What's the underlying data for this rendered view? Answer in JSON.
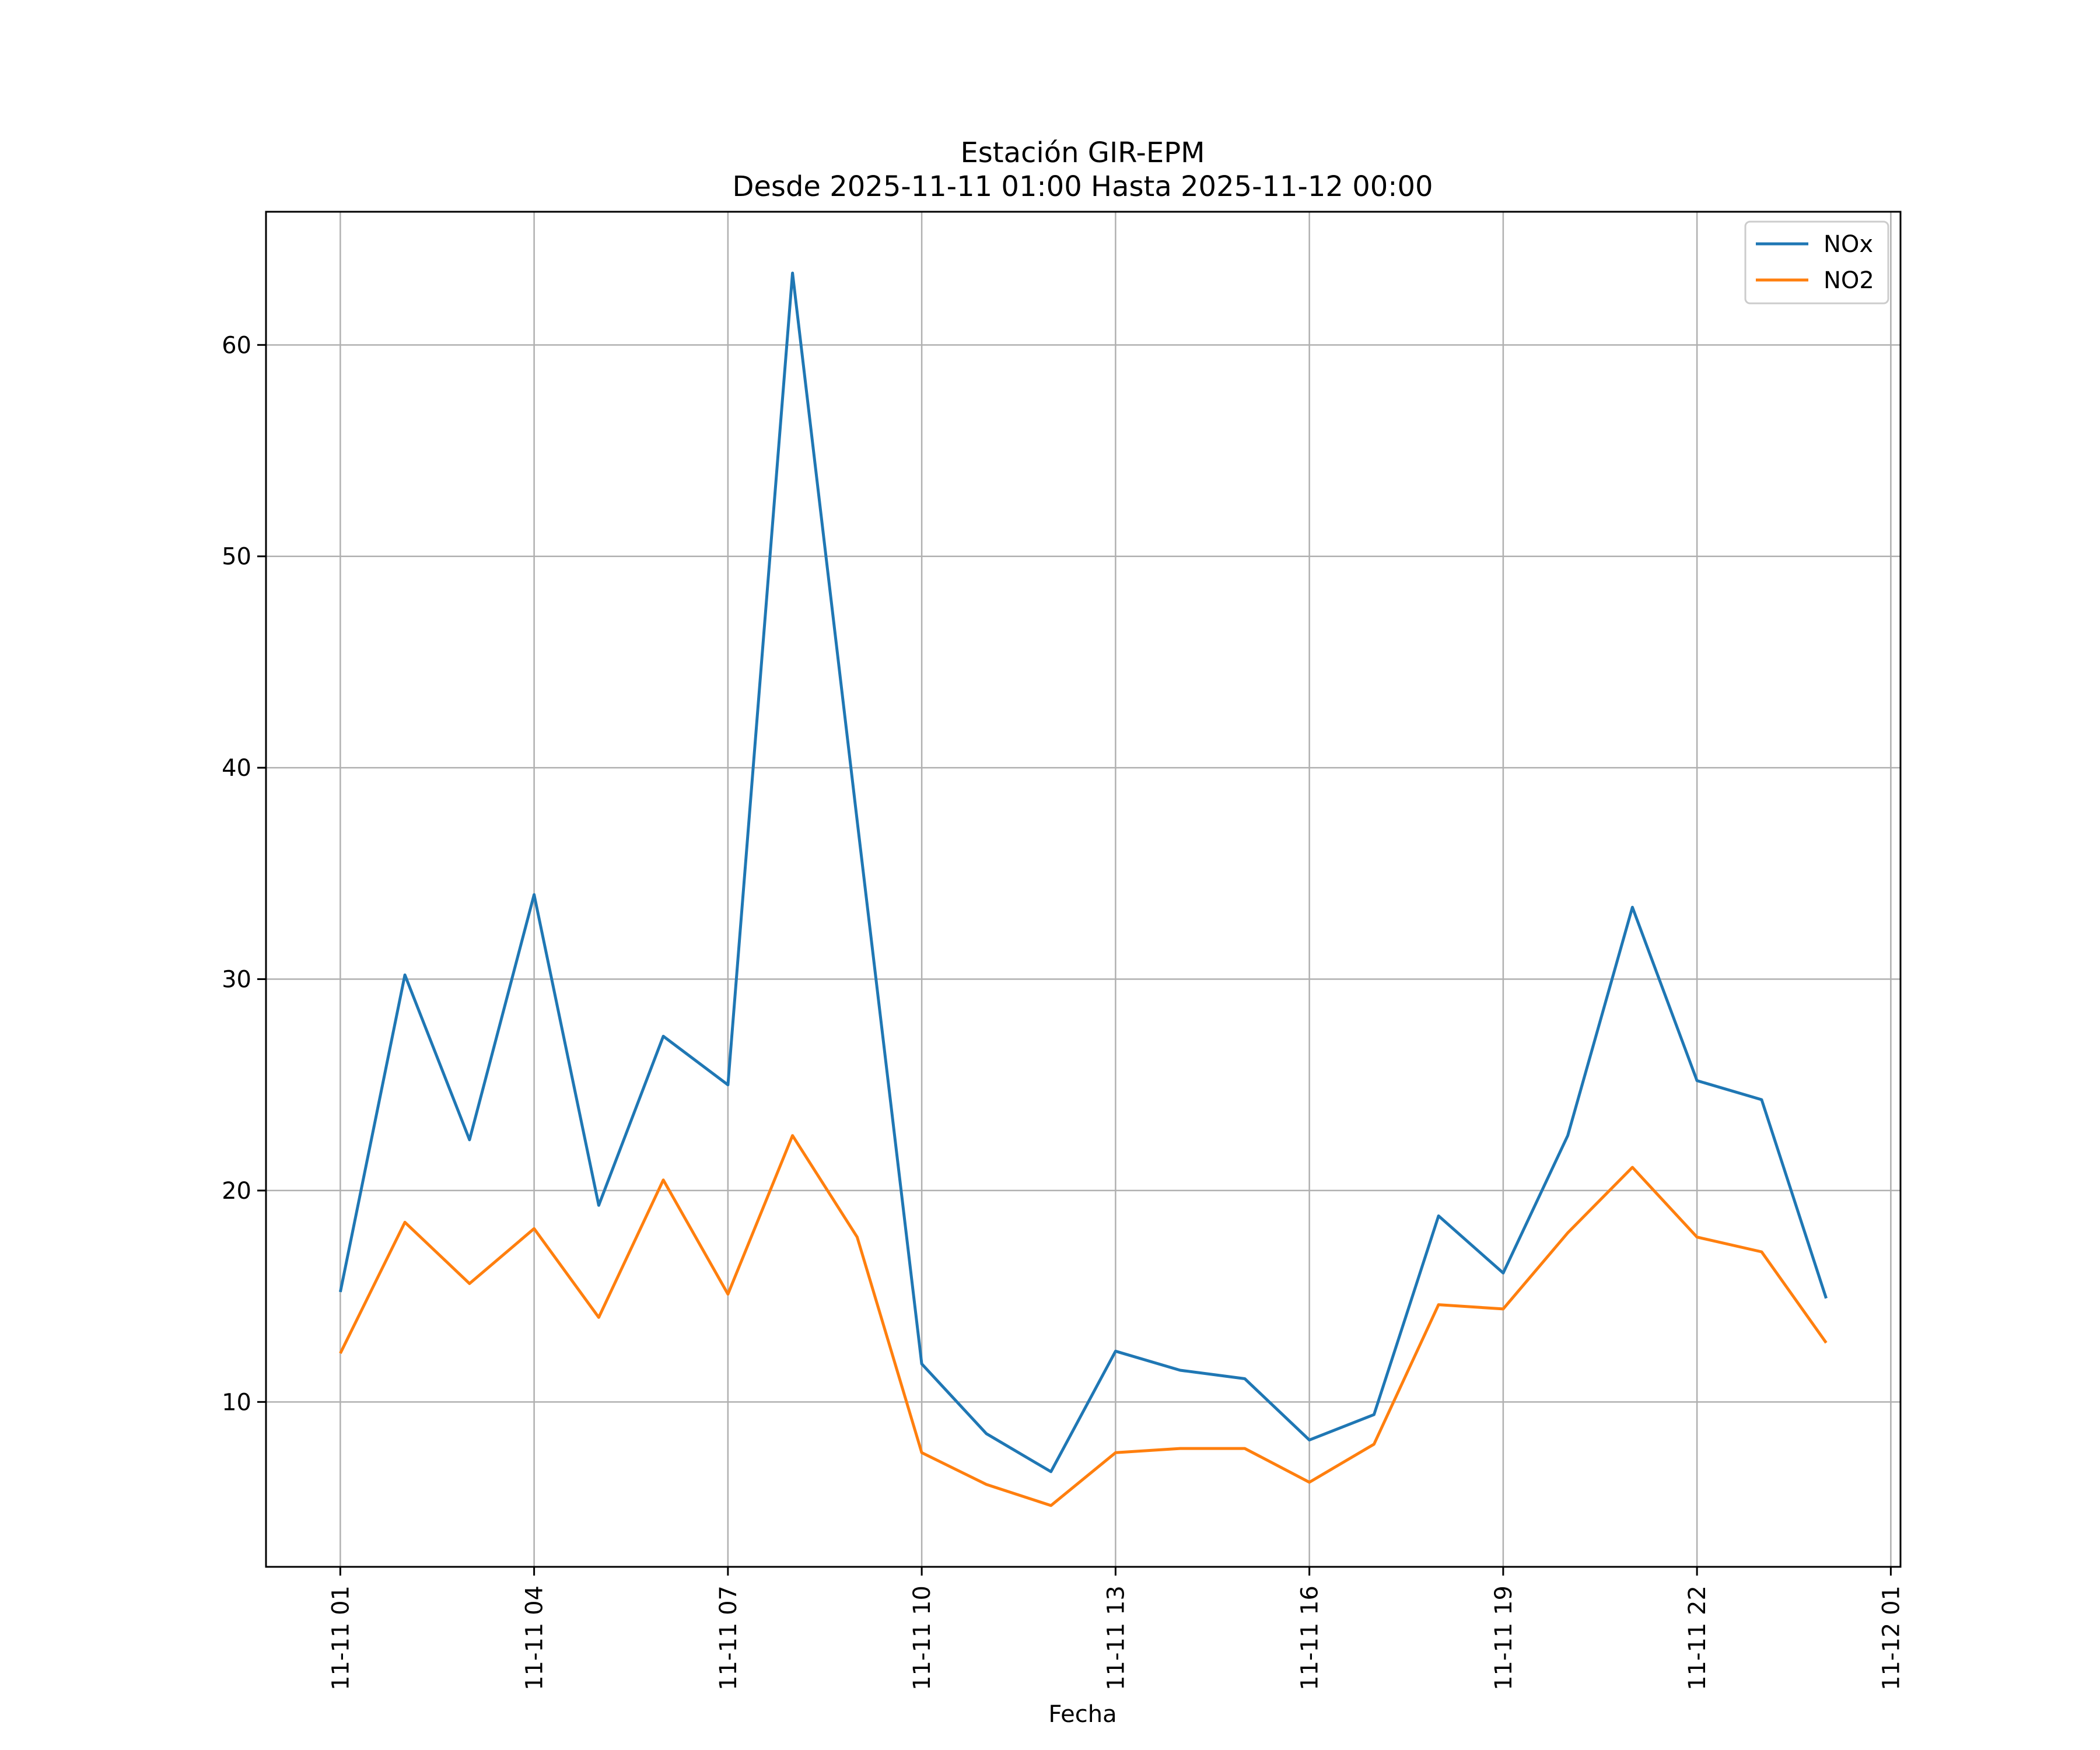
{
  "chart_data": {
    "type": "line",
    "title": "Estación GIR-EPM",
    "subtitle": "Desde 2025-11-11 01:00 Hasta 2025-11-12 00:00",
    "xlabel": "Fecha",
    "ylabel": "",
    "x": [
      "2025-11-11 01:00",
      "2025-11-11 02:00",
      "2025-11-11 03:00",
      "2025-11-11 04:00",
      "2025-11-11 05:00",
      "2025-11-11 06:00",
      "2025-11-11 07:00",
      "2025-11-11 08:00",
      "2025-11-11 09:00",
      "2025-11-11 10:00",
      "2025-11-11 11:00",
      "2025-11-11 12:00",
      "2025-11-11 13:00",
      "2025-11-11 14:00",
      "2025-11-11 15:00",
      "2025-11-11 16:00",
      "2025-11-11 17:00",
      "2025-11-11 18:00",
      "2025-11-11 19:00",
      "2025-11-11 20:00",
      "2025-11-11 21:00",
      "2025-11-11 22:00",
      "2025-11-11 23:00",
      "2025-11-12 00:00"
    ],
    "series": [
      {
        "name": "NOx",
        "color": "#1f77b4",
        "values": [
          15.2,
          30.2,
          22.4,
          34.0,
          19.3,
          27.3,
          25.0,
          63.4,
          37.5,
          11.8,
          8.5,
          6.7,
          12.4,
          11.5,
          11.1,
          8.2,
          9.4,
          18.8,
          16.1,
          22.6,
          33.4,
          25.2,
          24.3,
          14.9
        ]
      },
      {
        "name": "NO2",
        "color": "#ff7f0e",
        "values": [
          12.3,
          18.5,
          15.6,
          18.2,
          14.0,
          20.5,
          15.1,
          22.6,
          17.8,
          7.6,
          6.1,
          5.1,
          7.6,
          7.8,
          7.8,
          6.2,
          8.0,
          14.6,
          14.4,
          18.0,
          21.1,
          17.8,
          17.1,
          12.8
        ]
      }
    ],
    "xticks": [
      "11-11 01",
      "11-11 04",
      "11-11 07",
      "11-11 10",
      "11-11 13",
      "11-11 16",
      "11-11 19",
      "11-11 22",
      "11-12 01"
    ],
    "yticks": [
      10,
      20,
      30,
      40,
      50,
      60
    ],
    "ylim": [
      2.2,
      66.3
    ],
    "xlim": [
      "2025-11-10 23:51",
      "2025-11-12 01:09"
    ],
    "grid": true,
    "legend_position": "top-right"
  }
}
